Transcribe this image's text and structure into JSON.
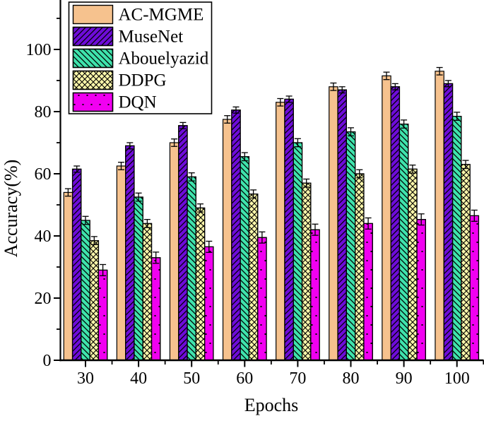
{
  "figure": {
    "title": "",
    "xlabel": "Epochs",
    "ylabel": "Accuracy(%)"
  },
  "chart_data": {
    "type": "bar",
    "title": "",
    "xlabel": "Epochs",
    "ylabel": "Accuracy(%)",
    "categories": [
      30,
      40,
      50,
      60,
      70,
      80,
      90,
      100
    ],
    "ylim": [
      0,
      116
    ],
    "yticks_major": [
      0,
      20,
      40,
      60,
      80,
      100
    ],
    "yticks_minor": [
      10,
      30,
      50,
      70,
      90,
      110
    ],
    "grid": false,
    "legend_position": "top-left-inside",
    "bar_outline_color": "#000000",
    "error_bar_color": "#000000",
    "series": [
      {
        "name": "AC-MGME",
        "color": "#F6C28E",
        "hatch": "none",
        "values": [
          54,
          62.5,
          70,
          77.5,
          83,
          88,
          91.5,
          93
        ],
        "error": 1.2
      },
      {
        "name": "MuseNet",
        "color": "#6E0CD9",
        "hatch": "forward-diagonal",
        "values": [
          61.5,
          69,
          75.5,
          80.5,
          84,
          87,
          88,
          89
        ],
        "error": 1.0
      },
      {
        "name": "Abouelyazid",
        "color": "#3FE3AC",
        "hatch": "backward-diagonal",
        "values": [
          45,
          52.5,
          59,
          65.5,
          70,
          73.5,
          76,
          78.5
        ],
        "error": 1.3
      },
      {
        "name": "DDPG",
        "color": "#FAF6AA",
        "hatch": "cross-diagonal",
        "values": [
          38.5,
          44,
          49,
          53.5,
          57,
          60,
          61.5,
          63
        ],
        "error": 1.3
      },
      {
        "name": "DQN",
        "color": "#F100F1",
        "hatch": "dots",
        "values": [
          29,
          33,
          36.5,
          39.5,
          42,
          44,
          45.3,
          46.5
        ],
        "error": 1.8
      }
    ]
  }
}
